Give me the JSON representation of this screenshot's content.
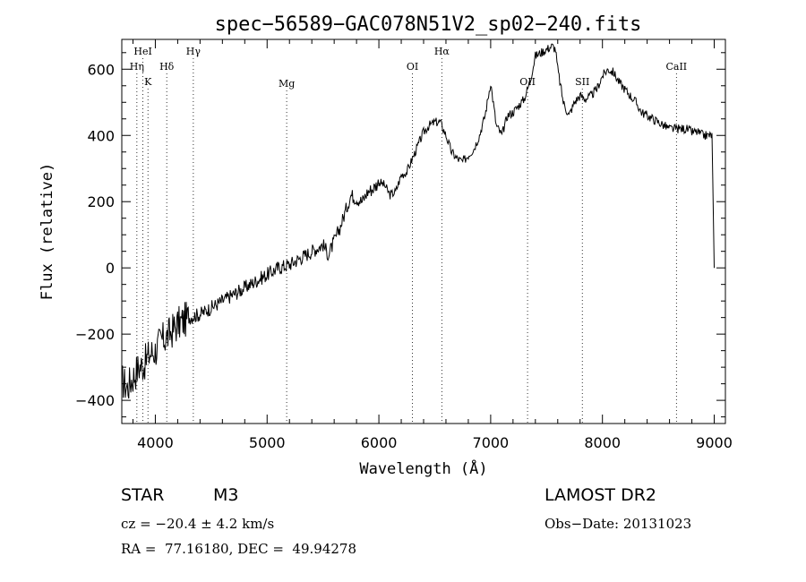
{
  "chart_data": {
    "type": "line",
    "title": "spec−56589−GAC078N51V2_sp02−240.fits",
    "xlabel": "Wavelength (Å)",
    "ylabel": "Flux (relative)",
    "xlim": [
      3700,
      9100
    ],
    "ylim": [
      -470,
      690
    ],
    "xticks": [
      4000,
      5000,
      6000,
      7000,
      8000,
      9000
    ],
    "xtick_labels": [
      "4000",
      "5000",
      "6000",
      "7000",
      "8000",
      "9000"
    ],
    "yticks": [
      -400,
      -200,
      0,
      200,
      400,
      600
    ],
    "ytick_labels": [
      "−400",
      "−200",
      "0",
      "200",
      "400",
      "600"
    ],
    "grid": false,
    "series": [
      {
        "x": [
          3700,
          3750,
          3800,
          3850,
          3900,
          3950,
          4000,
          4050,
          4100,
          4150,
          4200,
          4300,
          4400,
          4500,
          4600,
          4700,
          4800,
          4900,
          5000,
          5100,
          5200,
          5300,
          5400,
          5500,
          5550,
          5600,
          5650,
          5700,
          5750,
          5800,
          5850,
          5900,
          5950,
          6000,
          6050,
          6100,
          6150,
          6200,
          6250,
          6300,
          6350,
          6400,
          6450,
          6500,
          6550,
          6600,
          6650,
          6700,
          6750,
          6800,
          6850,
          6900,
          6950,
          7000,
          7050,
          7100,
          7150,
          7200,
          7250,
          7300,
          7350,
          7400,
          7450,
          7500,
          7550,
          7580,
          7600,
          7650,
          7700,
          7750,
          7800,
          7850,
          7900,
          7950,
          8000,
          8050,
          8100,
          8150,
          8200,
          8250,
          8300,
          8350,
          8400,
          8450,
          8500,
          8550,
          8600,
          8650,
          8700,
          8750,
          8800,
          8850,
          8900,
          8950,
          8980,
          9000
        ],
        "y": [
          -340,
          -360,
          -330,
          -300,
          -290,
          -260,
          -250,
          -220,
          -210,
          -190,
          -170,
          -150,
          -140,
          -120,
          -100,
          -80,
          -60,
          -40,
          -20,
          0,
          10,
          30,
          50,
          70,
          40,
          80,
          120,
          170,
          220,
          210,
          200,
          230,
          240,
          260,
          250,
          220,
          230,
          280,
          290,
          330,
          370,
          410,
          430,
          440,
          440,
          400,
          350,
          330,
          320,
          340,
          360,
          400,
          460,
          560,
          430,
          400,
          460,
          470,
          490,
          510,
          560,
          640,
          650,
          660,
          670,
          660,
          600,
          500,
          460,
          500,
          520,
          510,
          520,
          540,
          580,
          600,
          590,
          560,
          540,
          520,
          500,
          470,
          460,
          450,
          440,
          430,
          420,
          420,
          420,
          420,
          410,
          410,
          400,
          400,
          400,
          0
        ]
      }
    ],
    "lines": [
      {
        "label": "HeI",
        "x": 3889
      },
      {
        "label": "Hη",
        "x": 3835
      },
      {
        "label": "K",
        "x": 3934
      },
      {
        "label": "Hδ",
        "x": 4102
      },
      {
        "label": "Hγ",
        "x": 4340
      },
      {
        "label": "Mg",
        "x": 5175
      },
      {
        "label": "OI",
        "x": 6300
      },
      {
        "label": "Hα",
        "x": 6563
      },
      {
        "label": "OII",
        "x": 7330
      },
      {
        "label": "SII",
        "x": 7820
      },
      {
        "label": "CaII",
        "x": 8662
      }
    ]
  },
  "info": {
    "star_label": "STAR",
    "class_label": "M3",
    "cz_text": "cz = −20.4 ± 4.2 km/s",
    "radec_text": "RA =  77.16180, DEC =  49.94278",
    "survey_text": "LAMOST DR2",
    "obsdate_text": "Obs−Date: 20131023"
  }
}
